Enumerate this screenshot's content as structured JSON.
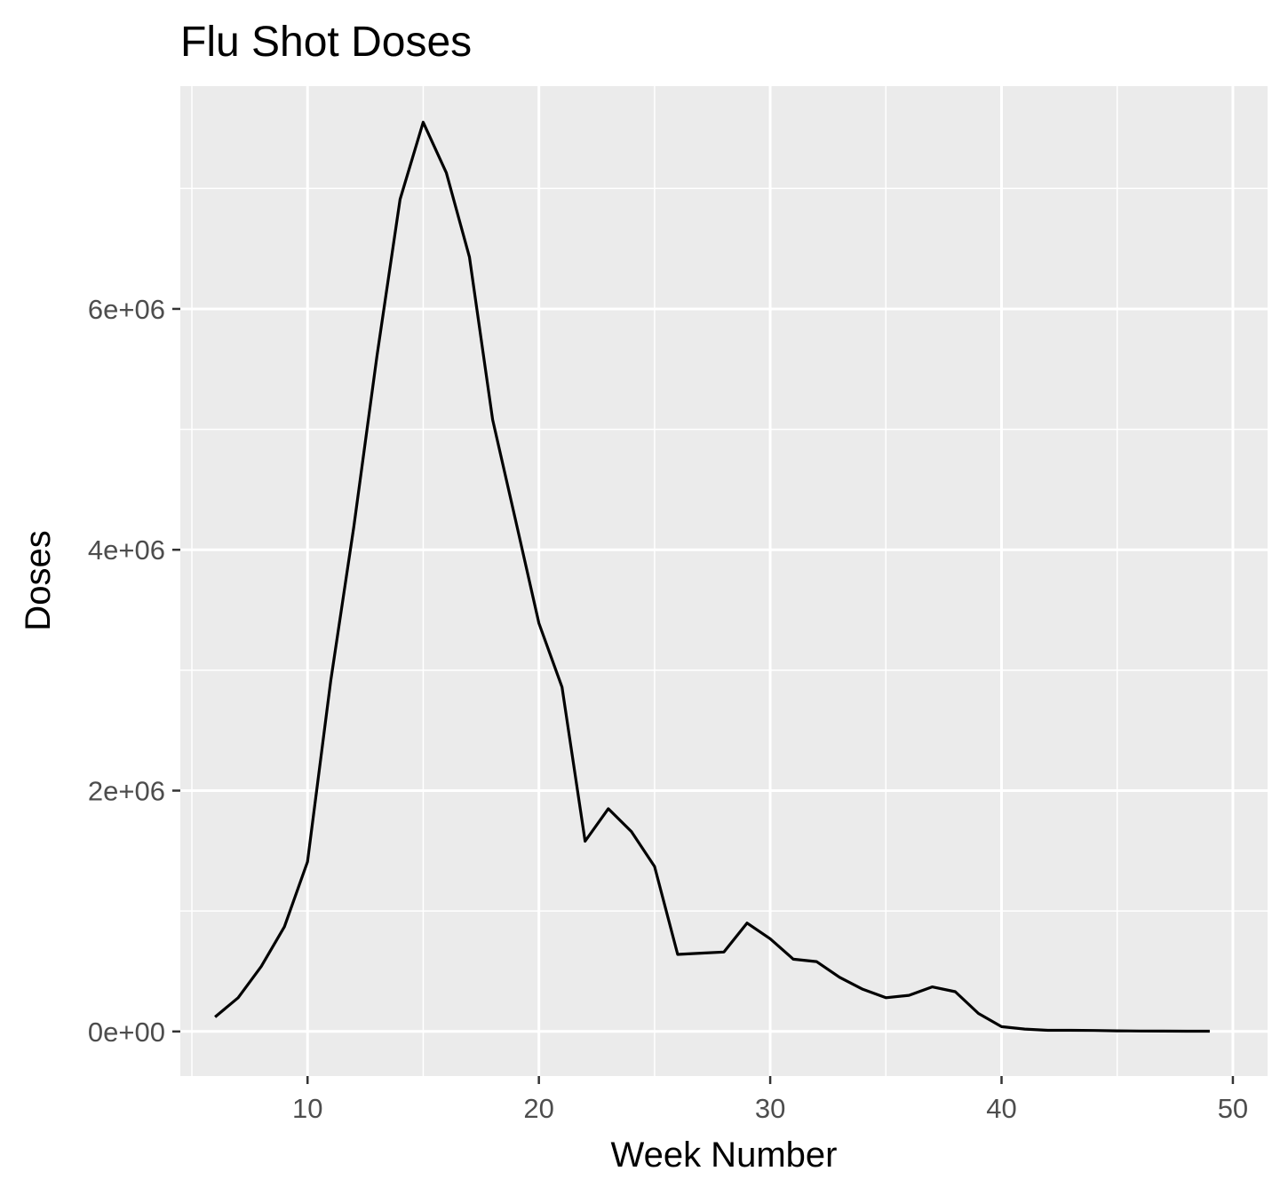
{
  "chart_data": {
    "type": "line",
    "title": "Flu Shot Doses",
    "xlabel": "Week Number",
    "ylabel": "Doses",
    "xlim": [
      4.5,
      51.5
    ],
    "ylim": [
      -370000,
      7850000
    ],
    "x_ticks": [
      10,
      20,
      30,
      40,
      50
    ],
    "x_tick_labels": [
      "10",
      "20",
      "30",
      "40",
      "50"
    ],
    "y_ticks": [
      0,
      2000000,
      4000000,
      6000000
    ],
    "y_tick_labels": [
      "0e+00",
      "2e+06",
      "4e+06",
      "6e+06"
    ],
    "grid": true,
    "colors": {
      "panel": "#ebebeb",
      "grid": "#ffffff",
      "line": "#000000",
      "ticks": "#333333"
    },
    "series": [
      {
        "x": [
          6,
          7,
          8,
          9,
          10,
          11,
          12,
          13,
          14,
          15,
          16,
          17,
          18,
          19,
          20,
          21,
          22,
          23,
          24,
          25,
          26,
          27,
          28,
          29,
          30,
          31,
          32,
          33,
          34,
          35,
          36,
          37,
          38,
          39,
          40,
          41,
          42,
          43,
          44,
          45,
          46,
          47,
          48,
          49
        ],
        "values": [
          120000,
          280000,
          540000,
          870000,
          1410000,
          2910000,
          4190000,
          5610000,
          6910000,
          7550000,
          7130000,
          6430000,
          5080000,
          4240000,
          3390000,
          2860000,
          1580000,
          1850000,
          1660000,
          1370000,
          640000,
          650000,
          660000,
          900000,
          770000,
          600000,
          580000,
          450000,
          350000,
          280000,
          300000,
          370000,
          330000,
          150000,
          40000,
          20000,
          10000,
          10000,
          8000,
          5000,
          4000,
          3000,
          2000,
          2000
        ]
      }
    ]
  }
}
